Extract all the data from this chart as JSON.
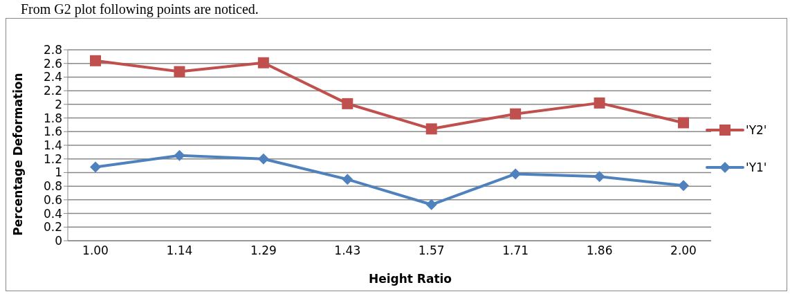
{
  "chart_data": {
    "type": "line",
    "xlabel": "Height Ratio",
    "ylabel": "Percentage Deformation",
    "annotations": [
      "From G2 plot following points are noticed."
    ],
    "categories": [
      "1.00",
      "1.14",
      "1.29",
      "1.43",
      "1.57",
      "1.71",
      "1.86",
      "2.00"
    ],
    "series": [
      {
        "name": "'Υ2'",
        "color": "#c0504d",
        "marker": "square",
        "values": [
          2.64,
          2.48,
          2.61,
          2.01,
          1.64,
          1.86,
          2.02,
          1.73
        ]
      },
      {
        "name": "'Υ1'",
        "color": "#4f81bd",
        "marker": "diamond",
        "values": [
          1.08,
          1.25,
          1.2,
          0.9,
          0.53,
          0.98,
          0.94,
          0.81
        ]
      }
    ],
    "ylim": [
      0,
      2.8
    ],
    "yticks": [
      0,
      0.2,
      0.4,
      0.6,
      0.8,
      1,
      1.2,
      1.4,
      1.6,
      1.8,
      2,
      2.2,
      2.4,
      2.6,
      2.8
    ],
    "grid": "y",
    "legend": "right",
    "line_style": "solid"
  }
}
